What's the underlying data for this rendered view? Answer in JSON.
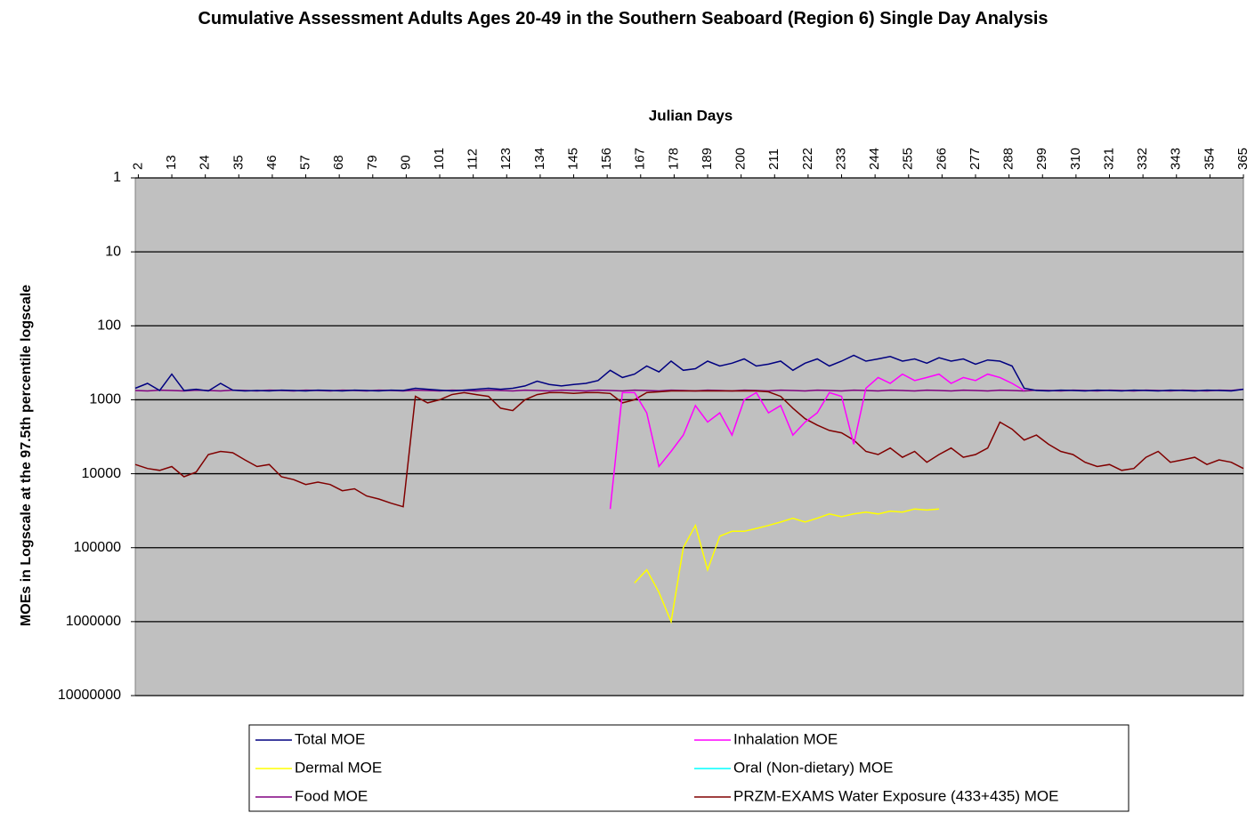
{
  "chart_data": {
    "type": "line",
    "title": "Cumulative Assessment Adults Ages 20-49 in the Southern Seaboard (Region 6) Single Day Analysis",
    "x_label": "Julian Days",
    "y_label": "MOEs in Logscale at the 97.5th percentile logscale",
    "x": [
      1,
      5,
      9,
      13,
      17,
      21,
      25,
      29,
      33,
      37,
      41,
      45,
      49,
      53,
      57,
      61,
      65,
      69,
      73,
      77,
      81,
      85,
      89,
      93,
      97,
      101,
      105,
      109,
      113,
      117,
      121,
      125,
      129,
      133,
      137,
      141,
      145,
      149,
      153,
      157,
      161,
      165,
      169,
      173,
      177,
      181,
      185,
      189,
      193,
      197,
      201,
      205,
      209,
      213,
      217,
      221,
      225,
      229,
      233,
      237,
      241,
      245,
      249,
      253,
      257,
      261,
      265,
      269,
      273,
      277,
      281,
      285,
      289,
      293,
      297,
      301,
      305,
      309,
      313,
      317,
      321,
      325,
      329,
      333,
      337,
      341,
      345,
      349,
      353,
      357,
      361,
      365
    ],
    "xlim": [
      1,
      365
    ],
    "xticks": [
      2,
      13,
      24,
      35,
      46,
      57,
      68,
      79,
      90,
      101,
      112,
      123,
      134,
      145,
      156,
      167,
      178,
      189,
      200,
      211,
      222,
      233,
      244,
      255,
      266,
      277,
      288,
      299,
      310,
      321,
      332,
      343,
      354,
      365
    ],
    "ylim": [
      1,
      10000000
    ],
    "yticks": [
      1,
      10,
      100,
      1000,
      10000,
      100000,
      1000000,
      10000000
    ],
    "y_log": true,
    "y_reversed": true,
    "grid": true,
    "legend": "bottom",
    "series": [
      {
        "name": "Total MOE",
        "color": "#000080",
        "values": [
          700,
          600,
          750,
          450,
          750,
          720,
          760,
          600,
          740,
          760,
          750,
          760,
          740,
          750,
          760,
          740,
          750,
          760,
          740,
          750,
          760,
          740,
          750,
          700,
          720,
          740,
          760,
          740,
          720,
          700,
          720,
          700,
          650,
          560,
          620,
          650,
          620,
          600,
          550,
          400,
          500,
          450,
          350,
          420,
          300,
          400,
          380,
          300,
          350,
          320,
          280,
          350,
          330,
          300,
          400,
          320,
          280,
          350,
          300,
          250,
          300,
          280,
          260,
          300,
          280,
          320,
          270,
          300,
          280,
          330,
          290,
          300,
          350,
          700,
          750,
          760,
          740,
          750,
          760,
          740,
          750,
          760,
          740,
          750,
          760,
          740,
          750,
          760,
          740,
          750,
          760,
          720
        ]
      },
      {
        "name": "Inhalation MOE",
        "color": "#ff00ff",
        "values": [
          null,
          null,
          null,
          null,
          null,
          null,
          null,
          null,
          null,
          null,
          null,
          null,
          null,
          null,
          null,
          null,
          null,
          null,
          null,
          null,
          null,
          null,
          null,
          null,
          null,
          null,
          null,
          null,
          null,
          null,
          null,
          null,
          null,
          null,
          null,
          null,
          null,
          null,
          null,
          30000,
          800,
          800,
          1500,
          8000,
          5000,
          3000,
          1200,
          2000,
          1500,
          3000,
          1000,
          800,
          1500,
          1200,
          3000,
          2000,
          1500,
          800,
          900,
          4000,
          700,
          500,
          600,
          450,
          550,
          500,
          450,
          600,
          500,
          550,
          450,
          500,
          600,
          750,
          null,
          null,
          null,
          null,
          null,
          null,
          null,
          null,
          null,
          null,
          null,
          null,
          null,
          null,
          null,
          null,
          null,
          null
        ]
      },
      {
        "name": "Dermal MOE",
        "color": "#ffff00",
        "values": [
          null,
          null,
          null,
          null,
          null,
          null,
          null,
          null,
          null,
          null,
          null,
          null,
          null,
          null,
          null,
          null,
          null,
          null,
          null,
          null,
          null,
          null,
          null,
          null,
          null,
          null,
          null,
          null,
          null,
          null,
          null,
          null,
          null,
          null,
          null,
          null,
          null,
          null,
          null,
          null,
          null,
          300000,
          200000,
          400000,
          1000000,
          100000,
          50000,
          200000,
          70000,
          60000,
          60000,
          55000,
          50000,
          45000,
          40000,
          45000,
          40000,
          35000,
          38000,
          35000,
          33000,
          35000,
          32000,
          33000,
          30000,
          31000,
          30000,
          null,
          null,
          null,
          null,
          null,
          null,
          null,
          null,
          null,
          null,
          null,
          null,
          null,
          null,
          null,
          null,
          null,
          null,
          null,
          null,
          null,
          null,
          null,
          null,
          null
        ]
      },
      {
        "name": "Oral (Non-dietary) MOE",
        "color": "#00ffff",
        "values": [
          null,
          null,
          null,
          null,
          null,
          null,
          null,
          null,
          null,
          null,
          null,
          null,
          null,
          null,
          null,
          null,
          null,
          null,
          null,
          null,
          null,
          null,
          null,
          null,
          null,
          null,
          null,
          null,
          null,
          null,
          null,
          null,
          null,
          null,
          null,
          null,
          null,
          null,
          null,
          null,
          null,
          null,
          null,
          null,
          null,
          null,
          null,
          null,
          null,
          null,
          null,
          null,
          null,
          null,
          null,
          null,
          null,
          null,
          null,
          null,
          null,
          null,
          null,
          null,
          null,
          null,
          null,
          null,
          null,
          null,
          null,
          null,
          null,
          null,
          null,
          null,
          null,
          null,
          null,
          null,
          null,
          null,
          null,
          null,
          null,
          null,
          null,
          null,
          null,
          null,
          null,
          null
        ]
      },
      {
        "name": "Food MOE",
        "color": "#800080",
        "values": [
          750,
          760,
          740,
          750,
          760,
          740,
          750,
          760,
          740,
          750,
          760,
          740,
          750,
          760,
          740,
          750,
          760,
          740,
          750,
          760,
          740,
          750,
          760,
          740,
          750,
          760,
          740,
          750,
          760,
          740,
          750,
          760,
          740,
          750,
          760,
          740,
          750,
          760,
          740,
          750,
          760,
          740,
          750,
          760,
          740,
          750,
          760,
          740,
          750,
          760,
          740,
          750,
          760,
          740,
          750,
          760,
          740,
          750,
          760,
          740,
          750,
          760,
          740,
          750,
          760,
          740,
          750,
          760,
          740,
          750,
          760,
          740,
          750,
          760,
          740,
          750,
          760,
          740,
          750,
          760,
          740,
          750,
          760,
          740,
          750,
          760,
          740,
          750,
          760,
          740,
          750,
          720
        ]
      },
      {
        "name": "PRZM-EXAMS Water Exposure (433+435) MOE",
        "color": "#800000",
        "values": [
          7500,
          8500,
          9000,
          8000,
          11000,
          9500,
          5500,
          5000,
          5200,
          6500,
          8000,
          7500,
          11000,
          12000,
          14000,
          13000,
          14000,
          17000,
          16000,
          20000,
          22000,
          25000,
          28000,
          900,
          1100,
          1000,
          850,
          800,
          850,
          900,
          1300,
          1400,
          1000,
          850,
          800,
          800,
          820,
          800,
          800,
          820,
          1100,
          1000,
          800,
          780,
          760,
          760,
          760,
          760,
          760,
          760,
          760,
          760,
          780,
          900,
          1300,
          1800,
          2200,
          2600,
          2800,
          3500,
          5000,
          5500,
          4500,
          6000,
          5000,
          7000,
          5500,
          4500,
          6000,
          5500,
          4500,
          2000,
          2500,
          3500,
          3000,
          4000,
          5000,
          5500,
          7000,
          8000,
          7500,
          9000,
          8500,
          6000,
          5000,
          7000,
          6500,
          6000,
          7500,
          6500,
          7000,
          8500
        ]
      }
    ]
  }
}
